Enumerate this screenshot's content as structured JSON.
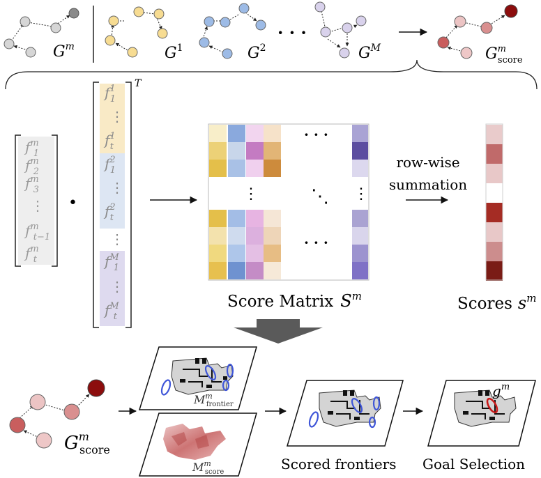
{
  "top_row": {
    "graphs": [
      {
        "base": "G",
        "sup": "m",
        "sub": ""
      },
      {
        "base": "G",
        "sup": "1",
        "sub": ""
      },
      {
        "base": "G",
        "sup": "2",
        "sub": ""
      },
      {
        "base": "G",
        "sup": "M",
        "sub": ""
      },
      {
        "base": "G",
        "sup": "m",
        "sub": "score"
      }
    ],
    "dots": "· · ·",
    "colors": {
      "gray": "#d6d6d6",
      "gray_dark": "#8a8a8a",
      "yellow": "#f7dc92",
      "blue": "#9dbbe6",
      "lavender": "#d9d2ec",
      "score_light": "#ecc4c4",
      "score_mid": "#d08a8a",
      "score_dark": "#8c0d0d"
    }
  },
  "left_vector": {
    "entries": [
      {
        "base": "f",
        "sub": "1",
        "sup": "m"
      },
      {
        "base": "f",
        "sub": "2",
        "sup": "m"
      },
      {
        "base": "f",
        "sub": "3",
        "sup": "m"
      },
      {
        "base": "⋮",
        "sub": "",
        "sup": ""
      },
      {
        "base": "f",
        "sub": "t−1",
        "sup": "m"
      },
      {
        "base": "f",
        "sub": "t",
        "sup": "m"
      }
    ],
    "dot_operator": "•"
  },
  "right_vector": {
    "transpose": "T",
    "entries": [
      {
        "base": "f",
        "sub": "1",
        "sup": "1"
      },
      {
        "base": "⋮",
        "sub": "",
        "sup": ""
      },
      {
        "base": "f",
        "sub": "t",
        "sup": "1"
      },
      {
        "base": "f",
        "sub": "1",
        "sup": "2"
      },
      {
        "base": "⋮",
        "sub": "",
        "sup": ""
      },
      {
        "base": "f",
        "sub": "t",
        "sup": "2"
      },
      {
        "base": "⋮",
        "sub": "",
        "sup": ""
      },
      {
        "base": "f",
        "sub": "1",
        "sup": "M"
      },
      {
        "base": "⋮",
        "sub": "",
        "sup": ""
      },
      {
        "base": "f",
        "sub": "t",
        "sup": "M"
      }
    ]
  },
  "score_matrix": {
    "label": "Score Matrix",
    "symbol_base": "S",
    "symbol_sup": "m",
    "dots_h": "· · ·",
    "dots_v": "⋮",
    "dots_d": "⋱",
    "top_block": [
      [
        "#f8eec9",
        "#8aa9dd",
        "#f2d5ef",
        "#f6e2c9"
      ],
      [
        "#ecd177",
        "#c8d6ea",
        "#c47bc2",
        "#e2b576"
      ],
      [
        "#e4bf4a",
        "#a9c1e6",
        "#f0d0ee",
        "#cd8b3c"
      ]
    ],
    "top_right": [
      "#a9a3d4",
      "#5c4ea0",
      "#dcd8ee"
    ],
    "bottom_block": [
      [
        "#e4bf4a",
        "#a3bde6",
        "#e7b4e2",
        "#f5e6d6"
      ],
      [
        "#f3e2ad",
        "#cfdbee",
        "#dcb0de",
        "#eed5b8"
      ],
      [
        "#f0d97f",
        "#aec6ea",
        "#e4bfe4",
        "#e7bd84"
      ],
      [
        "#e7c04f",
        "#6f92d0",
        "#c48cc6",
        "#f6e9d8"
      ]
    ],
    "bottom_right": [
      "#aaa3d2",
      "#d9d5ec",
      "#9c93cf",
      "#7f71c6"
    ]
  },
  "summation": {
    "label_line1": "row-wise",
    "label_line2": "summation"
  },
  "scores": {
    "label": "Scores",
    "symbol_base": "s",
    "symbol_sup": "m",
    "cells": [
      "#e9cbcb",
      "#c06a6a",
      "#e8c8c8",
      "#ffffff",
      "#a52c24",
      "#e8c8c8",
      "#cc8d8d",
      "#7a1c16"
    ]
  },
  "bottom_row": {
    "gscore": {
      "base": "G",
      "sup": "m",
      "sub": "score"
    },
    "frontier_label": {
      "base": "M",
      "sup": "m",
      "sub": "frontier"
    },
    "score_map_label": {
      "base": "M",
      "sup": "m",
      "sub": "score"
    },
    "scored_frontiers_label": "Scored frontiers",
    "goal_label": "Goal Selection",
    "goal_symbol": {
      "base": "g",
      "sup": "m"
    }
  }
}
